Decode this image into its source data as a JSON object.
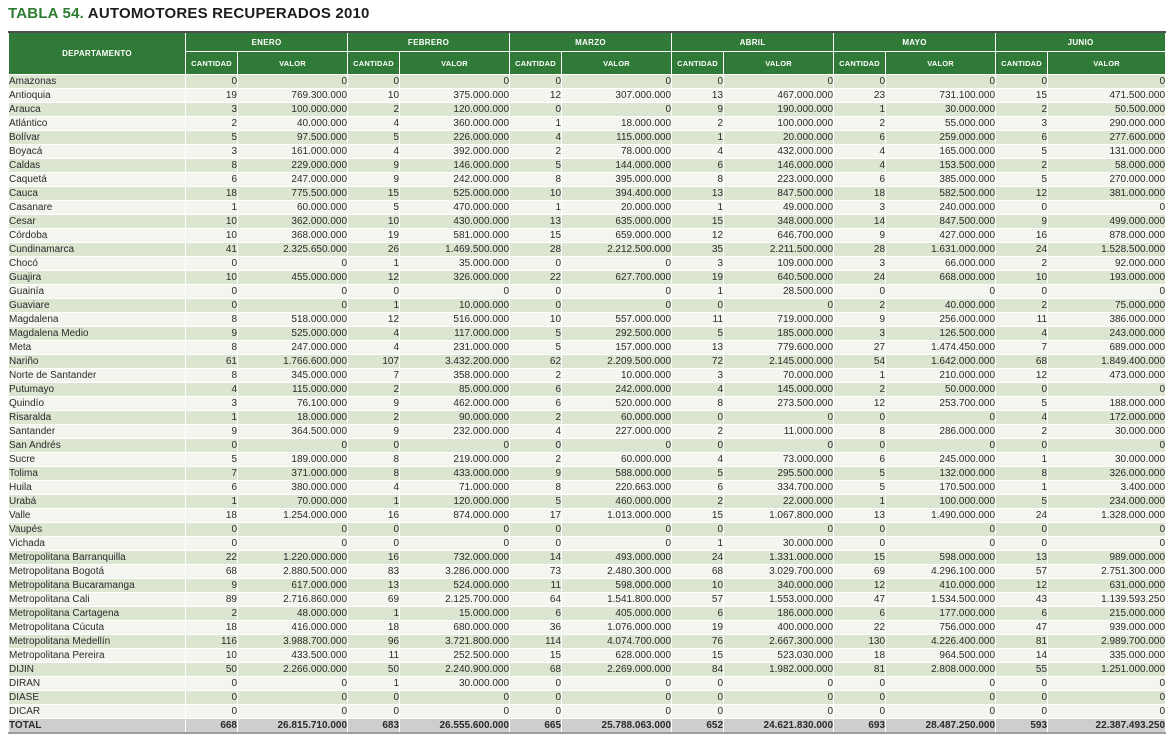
{
  "title": {
    "prefix": "TABLA 54.",
    "main": "AUTOMOTORES RECUPERADOS 2010"
  },
  "colors": {
    "header_green": "#2e7a36",
    "title_green": "#2f7d33",
    "row_stripe": "#dbe5d0",
    "row_plain": "#f3f5ee",
    "total_gray": "#cecece"
  },
  "table": {
    "department_header": "DEPARTAMENTO",
    "months": [
      "ENERO",
      "FEBRERO",
      "MARZO",
      "ABRIL",
      "MAYO",
      "JUNIO"
    ],
    "sub_headers": {
      "cantidad": "CANTIDAD",
      "valor": "VALOR"
    },
    "rows": [
      {
        "department": "Amazonas",
        "values": [
          "0",
          "0",
          "0",
          "0",
          "0",
          "0",
          "0",
          "0",
          "0",
          "0",
          "0",
          "0"
        ]
      },
      {
        "department": "Antioquia",
        "values": [
          "19",
          "769.300.000",
          "10",
          "375.000.000",
          "12",
          "307.000.000",
          "13",
          "467.000.000",
          "23",
          "731.100.000",
          "15",
          "471.500.000"
        ]
      },
      {
        "department": "Arauca",
        "values": [
          "3",
          "100.000.000",
          "2",
          "120.000.000",
          "0",
          "0",
          "9",
          "190.000.000",
          "1",
          "30.000.000",
          "2",
          "50.500.000"
        ]
      },
      {
        "department": "Atlántico",
        "values": [
          "2",
          "40.000.000",
          "4",
          "360.000.000",
          "1",
          "18.000.000",
          "2",
          "100.000.000",
          "2",
          "55.000.000",
          "3",
          "290.000.000"
        ]
      },
      {
        "department": "Bolívar",
        "values": [
          "5",
          "97.500.000",
          "5",
          "226.000.000",
          "4",
          "115.000.000",
          "1",
          "20.000.000",
          "6",
          "259.000.000",
          "6",
          "277.600.000"
        ]
      },
      {
        "department": "Boyacá",
        "values": [
          "3",
          "161.000.000",
          "4",
          "392.000.000",
          "2",
          "78.000.000",
          "4",
          "432.000.000",
          "4",
          "165.000.000",
          "5",
          "131.000.000"
        ]
      },
      {
        "department": "Caldas",
        "values": [
          "8",
          "229.000.000",
          "9",
          "146.000.000",
          "5",
          "144.000.000",
          "6",
          "146.000.000",
          "4",
          "153.500.000",
          "2",
          "58.000.000"
        ]
      },
      {
        "department": "Caquetá",
        "values": [
          "6",
          "247.000.000",
          "9",
          "242.000.000",
          "8",
          "395.000.000",
          "8",
          "223.000.000",
          "6",
          "385.000.000",
          "5",
          "270.000.000"
        ]
      },
      {
        "department": "Cauca",
        "values": [
          "18",
          "775.500.000",
          "15",
          "525.000.000",
          "10",
          "394.400.000",
          "13",
          "847.500.000",
          "18",
          "582.500.000",
          "12",
          "381.000.000"
        ]
      },
      {
        "department": "Casanare",
        "values": [
          "1",
          "60.000.000",
          "5",
          "470.000.000",
          "1",
          "20.000.000",
          "1",
          "49.000.000",
          "3",
          "240.000.000",
          "0",
          "0"
        ]
      },
      {
        "department": "Cesar",
        "values": [
          "10",
          "362.000.000",
          "10",
          "430.000.000",
          "13",
          "635.000.000",
          "15",
          "348.000.000",
          "14",
          "847.500.000",
          "9",
          "499.000.000"
        ]
      },
      {
        "department": "Córdoba",
        "values": [
          "10",
          "368.000.000",
          "19",
          "581.000.000",
          "15",
          "659.000.000",
          "12",
          "646.700.000",
          "9",
          "427.000.000",
          "16",
          "878.000.000"
        ]
      },
      {
        "department": "Cundinamarca",
        "values": [
          "41",
          "2.325.650.000",
          "26",
          "1.469.500.000",
          "28",
          "2.212.500.000",
          "35",
          "2.211.500.000",
          "28",
          "1.631.000.000",
          "24",
          "1.528.500.000"
        ]
      },
      {
        "department": "Chocó",
        "values": [
          "0",
          "0",
          "1",
          "35.000.000",
          "0",
          "0",
          "3",
          "109.000.000",
          "3",
          "66.000.000",
          "2",
          "92.000.000"
        ]
      },
      {
        "department": "Guajira",
        "values": [
          "10",
          "455.000.000",
          "12",
          "326.000.000",
          "22",
          "627.700.000",
          "19",
          "640.500.000",
          "24",
          "668.000.000",
          "10",
          "193.000.000"
        ]
      },
      {
        "department": "Guainía",
        "values": [
          "0",
          "0",
          "0",
          "0",
          "0",
          "0",
          "1",
          "28.500.000",
          "0",
          "0",
          "0",
          "0"
        ]
      },
      {
        "department": "Guaviare",
        "values": [
          "0",
          "0",
          "1",
          "10.000.000",
          "0",
          "0",
          "0",
          "0",
          "2",
          "40.000.000",
          "2",
          "75.000.000"
        ]
      },
      {
        "department": "Magdalena",
        "values": [
          "8",
          "518.000.000",
          "12",
          "516.000.000",
          "10",
          "557.000.000",
          "11",
          "719.000.000",
          "9",
          "256.000.000",
          "11",
          "386.000.000"
        ]
      },
      {
        "department": "Magdalena Medio",
        "values": [
          "9",
          "525.000.000",
          "4",
          "117.000.000",
          "5",
          "292.500.000",
          "5",
          "185.000.000",
          "3",
          "126.500.000",
          "4",
          "243.000.000"
        ]
      },
      {
        "department": "Meta",
        "values": [
          "8",
          "247.000.000",
          "4",
          "231.000.000",
          "5",
          "157.000.000",
          "13",
          "779.600.000",
          "27",
          "1.474.450.000",
          "7",
          "689.000.000"
        ]
      },
      {
        "department": "Nariño",
        "values": [
          "61",
          "1.766.600.000",
          "107",
          "3.432.200.000",
          "62",
          "2.209.500.000",
          "72",
          "2.145.000.000",
          "54",
          "1.642.000.000",
          "68",
          "1.849.400.000"
        ]
      },
      {
        "department": "Norte de Santander",
        "values": [
          "8",
          "345.000.000",
          "7",
          "358.000.000",
          "2",
          "10.000.000",
          "3",
          "70.000.000",
          "1",
          "210.000.000",
          "12",
          "473.000.000"
        ]
      },
      {
        "department": "Putumayo",
        "values": [
          "4",
          "115.000.000",
          "2",
          "85.000.000",
          "6",
          "242.000.000",
          "4",
          "145.000.000",
          "2",
          "50.000.000",
          "0",
          "0"
        ]
      },
      {
        "department": "Quindío",
        "values": [
          "3",
          "76.100.000",
          "9",
          "462.000.000",
          "6",
          "520.000.000",
          "8",
          "273.500.000",
          "12",
          "253.700.000",
          "5",
          "188.000.000"
        ]
      },
      {
        "department": "Risaralda",
        "values": [
          "1",
          "18.000.000",
          "2",
          "90.000.000",
          "2",
          "60.000.000",
          "0",
          "0",
          "0",
          "0",
          "4",
          "172.000.000"
        ]
      },
      {
        "department": "Santander",
        "values": [
          "9",
          "364.500.000",
          "9",
          "232.000.000",
          "4",
          "227.000.000",
          "2",
          "11.000.000",
          "8",
          "286.000.000",
          "2",
          "30.000.000"
        ]
      },
      {
        "department": "San Andrés",
        "values": [
          "0",
          "0",
          "0",
          "0",
          "0",
          "0",
          "0",
          "0",
          "0",
          "0",
          "0",
          "0"
        ]
      },
      {
        "department": "Sucre",
        "values": [
          "5",
          "189.000.000",
          "8",
          "219.000.000",
          "2",
          "60.000.000",
          "4",
          "73.000.000",
          "6",
          "245.000.000",
          "1",
          "30.000.000"
        ]
      },
      {
        "department": "Tolima",
        "values": [
          "7",
          "371.000.000",
          "8",
          "433.000.000",
          "9",
          "588.000.000",
          "5",
          "295.500.000",
          "5",
          "132.000.000",
          "8",
          "326.000.000"
        ]
      },
      {
        "department": "Huila",
        "values": [
          "6",
          "380.000.000",
          "4",
          "71.000.000",
          "8",
          "220.663.000",
          "6",
          "334.700.000",
          "5",
          "170.500.000",
          "1",
          "3.400.000"
        ]
      },
      {
        "department": "Urabá",
        "values": [
          "1",
          "70.000.000",
          "1",
          "120.000.000",
          "5",
          "460.000.000",
          "2",
          "22.000.000",
          "1",
          "100.000.000",
          "5",
          "234.000.000"
        ]
      },
      {
        "department": "Valle",
        "values": [
          "18",
          "1.254.000.000",
          "16",
          "874.000.000",
          "17",
          "1.013.000.000",
          "15",
          "1.067.800.000",
          "13",
          "1.490.000.000",
          "24",
          "1.328.000.000"
        ]
      },
      {
        "department": "Vaupés",
        "values": [
          "0",
          "0",
          "0",
          "0",
          "0",
          "0",
          "0",
          "0",
          "0",
          "0",
          "0",
          "0"
        ]
      },
      {
        "department": "Vichada",
        "values": [
          "0",
          "0",
          "0",
          "0",
          "0",
          "0",
          "1",
          "30.000.000",
          "0",
          "0",
          "0",
          "0"
        ]
      },
      {
        "department": "Metropolitana Barranquilla",
        "values": [
          "22",
          "1.220.000.000",
          "16",
          "732.000.000",
          "14",
          "493.000.000",
          "24",
          "1.331.000.000",
          "15",
          "598.000.000",
          "13",
          "989.000.000"
        ]
      },
      {
        "department": "Metropolitana Bogotá",
        "values": [
          "68",
          "2.880.500.000",
          "83",
          "3.286.000.000",
          "73",
          "2.480.300.000",
          "68",
          "3.029.700.000",
          "69",
          "4.296.100.000",
          "57",
          "2.751.300.000"
        ]
      },
      {
        "department": "Metropolitana Bucaramanga",
        "values": [
          "9",
          "617.000.000",
          "13",
          "524.000.000",
          "11",
          "598.000.000",
          "10",
          "340.000.000",
          "12",
          "410.000.000",
          "12",
          "631.000.000"
        ]
      },
      {
        "department": "Metropolitana Cali",
        "values": [
          "89",
          "2.716.860.000",
          "69",
          "2.125.700.000",
          "64",
          "1.541.800.000",
          "57",
          "1.553.000.000",
          "47",
          "1.534.500.000",
          "43",
          "1.139.593.250"
        ]
      },
      {
        "department": "Metropolitana Cartagena",
        "values": [
          "2",
          "48.000.000",
          "1",
          "15.000.000",
          "6",
          "405.000.000",
          "6",
          "186.000.000",
          "6",
          "177.000.000",
          "6",
          "215.000.000"
        ]
      },
      {
        "department": "Metropolitana Cúcuta",
        "values": [
          "18",
          "416.000.000",
          "18",
          "680.000.000",
          "36",
          "1.076.000.000",
          "19",
          "400.000.000",
          "22",
          "756.000.000",
          "47",
          "939.000.000"
        ]
      },
      {
        "department": "Metropolitana Medellín",
        "values": [
          "116",
          "3.988.700.000",
          "96",
          "3.721.800.000",
          "114",
          "4.074.700.000",
          "76",
          "2.667.300.000",
          "130",
          "4.226.400.000",
          "81",
          "2.989.700.000"
        ]
      },
      {
        "department": "Metropolitana Pereira",
        "values": [
          "10",
          "433.500.000",
          "11",
          "252.500.000",
          "15",
          "628.000.000",
          "15",
          "523.030.000",
          "18",
          "964.500.000",
          "14",
          "335.000.000"
        ]
      },
      {
        "department": "DIJIN",
        "values": [
          "50",
          "2.266.000.000",
          "50",
          "2.240.900.000",
          "68",
          "2.269.000.000",
          "84",
          "1.982.000.000",
          "81",
          "2.808.000.000",
          "55",
          "1.251.000.000"
        ]
      },
      {
        "department": "DIRAN",
        "values": [
          "0",
          "0",
          "1",
          "30.000.000",
          "0",
          "0",
          "0",
          "0",
          "0",
          "0",
          "0",
          "0"
        ]
      },
      {
        "department": "DIASE",
        "values": [
          "0",
          "0",
          "0",
          "0",
          "0",
          "0",
          "0",
          "0",
          "0",
          "0",
          "0",
          "0"
        ]
      },
      {
        "department": "DICAR",
        "values": [
          "0",
          "0",
          "0",
          "0",
          "0",
          "0",
          "0",
          "0",
          "0",
          "0",
          "0",
          "0"
        ]
      }
    ],
    "total": {
      "department": "TOTAL",
      "values": [
        "668",
        "26.815.710.000",
        "683",
        "26.555.600.000",
        "665",
        "25.788.063.000",
        "652",
        "24.621.830.000",
        "693",
        "28.487.250.000",
        "593",
        "22.387.493.250"
      ]
    }
  }
}
